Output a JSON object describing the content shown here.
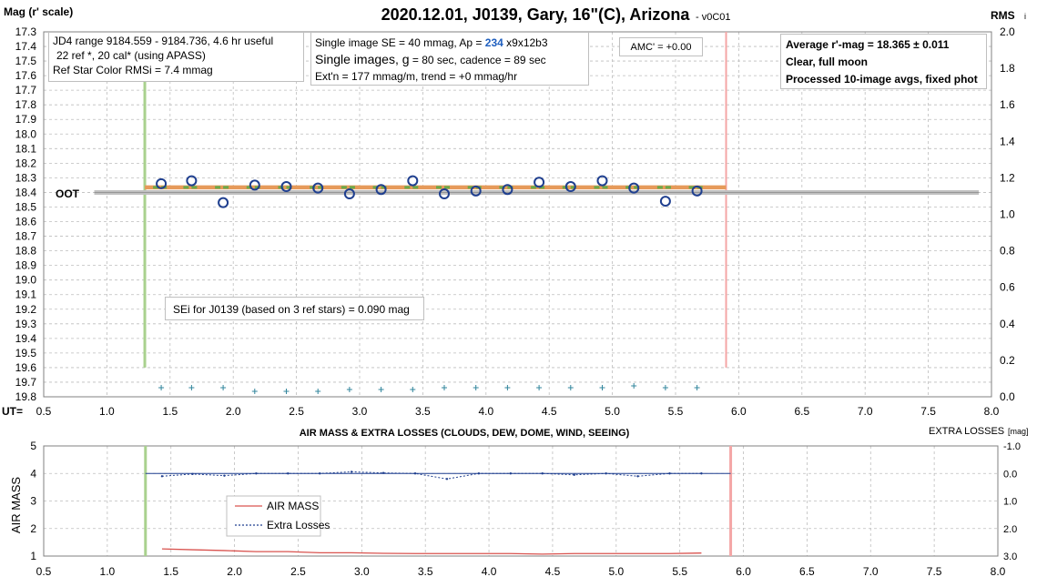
{
  "top_chart": {
    "title": "2020.12.01, J0139, Gary, 16\"(C), Arizona",
    "version": "- v0C01",
    "y_left_label": "Mag (r' scale)",
    "y_right_label": "RMS",
    "y_right_label_sub": "i",
    "x_prefix": "UT=",
    "oot_label": "OOT",
    "info_box_1": {
      "line1": "JD4 range 9184.559 - 9184.736, 4.6 hr useful",
      "line2": "22 ref *, 20 cal* (using APASS)",
      "line3": "Ref Star Color RMSi = 7.4 mmag"
    },
    "info_box_2": {
      "line1_pre": "Single image SE = 40 mmag, Ap = ",
      "line1_ap": "234",
      "line1_post": " x9x12b3",
      "line2_pre": "Single images, ",
      "line2_g": "g",
      "line2_post": " = 80 sec, cadence = 89 sec",
      "line3": "Ext'n = 177 mmag/m, trend = +0 mmag/hr"
    },
    "amc_box": "AMC' = +0.00",
    "summary_box": {
      "line1_pre": "Average r'-mag =  18.365 ",
      "line1_post": "± 0.011",
      "line2": "Clear, full moon",
      "line3": "Processed 10-image avgs, fixed phot"
    },
    "sei_box": "SEi for J0139 (based on 3 ref stars) = 0.090 mag",
    "colors": {
      "points": "#1f3f8f",
      "fit": "#e69a5a",
      "oot": "#c0c0c0",
      "ingress": "#a9d18e",
      "egress": "#f4a6a6",
      "rms": "#31859c"
    }
  },
  "bottom_chart": {
    "title": "AIR MASS & EXTRA LOSSES (CLOUDS, DEW, DOME, WIND, SEEING)",
    "y_left_label": "AIR MASS",
    "y_right_label": "EXTRA LOSSES",
    "y_right_unit": "[mag]",
    "legend": [
      "AIR MASS",
      "Extra Losses"
    ],
    "colors": {
      "airmass": "#d9534f",
      "losses": "#1f3f8f"
    }
  },
  "chart_data": [
    {
      "type": "scatter",
      "title": "2020.12.01, J0139, Gary, 16\"(C), Arizona",
      "xlabel": "UT",
      "ylabel": "Mag (r' scale)",
      "xlim": [
        0.5,
        8.0
      ],
      "ylim": [
        17.3,
        19.8
      ],
      "y_inverted": true,
      "y2label": "RMS i",
      "y2lim": [
        0.0,
        2.0
      ],
      "grid": true,
      "x_ticks": [
        "0.5",
        "1.0",
        "1.5",
        "2.0",
        "2.5",
        "3.0",
        "3.5",
        "4.0",
        "4.5",
        "5.0",
        "5.5",
        "6.0",
        "6.5",
        "7.0",
        "7.5",
        "8.0"
      ],
      "y_ticks": [
        "17.3",
        "17.4",
        "17.5",
        "17.6",
        "17.7",
        "17.8",
        "17.9",
        "18.0",
        "18.1",
        "18.2",
        "18.3",
        "18.4",
        "18.5",
        "18.6",
        "18.7",
        "18.8",
        "18.9",
        "19.0",
        "19.1",
        "19.2",
        "19.3",
        "19.4",
        "19.5",
        "19.6",
        "19.7",
        "19.8"
      ],
      "y2_ticks": [
        "0.0",
        "0.2",
        "0.4",
        "0.6",
        "0.8",
        "1.0",
        "1.2",
        "1.4",
        "1.6",
        "1.8",
        "2.0"
      ],
      "series": [
        {
          "name": "mag",
          "x": [
            1.43,
            1.67,
            1.92,
            2.17,
            2.42,
            2.67,
            2.92,
            3.17,
            3.42,
            3.67,
            3.92,
            4.17,
            4.42,
            4.67,
            4.92,
            5.17,
            5.42,
            5.67
          ],
          "y": [
            18.34,
            18.32,
            18.47,
            18.35,
            18.36,
            18.37,
            18.41,
            18.38,
            18.32,
            18.41,
            18.39,
            18.38,
            18.33,
            18.36,
            18.32,
            18.37,
            18.46,
            18.39
          ]
        },
        {
          "name": "model",
          "x": [
            1.3,
            5.9
          ],
          "y": [
            18.365,
            18.365
          ]
        },
        {
          "name": "OOT",
          "x": [
            0.9,
            7.9
          ],
          "y": [
            18.4,
            18.4
          ]
        },
        {
          "name": "rms",
          "x": [
            1.43,
            1.67,
            1.92,
            2.17,
            2.42,
            2.67,
            2.92,
            3.17,
            3.42,
            3.67,
            3.92,
            4.17,
            4.42,
            4.67,
            4.92,
            5.17,
            5.42,
            5.67
          ],
          "y2": [
            0.05,
            0.05,
            0.05,
            0.03,
            0.03,
            0.03,
            0.04,
            0.04,
            0.04,
            0.05,
            0.05,
            0.05,
            0.05,
            0.05,
            0.05,
            0.06,
            0.05,
            0.05
          ]
        }
      ],
      "vlines": [
        1.3,
        5.9
      ]
    },
    {
      "type": "line",
      "title": "AIR MASS & EXTRA LOSSES (CLOUDS, DEW, DOME, WIND, SEEING)",
      "xlabel": "",
      "ylabel": "AIR MASS",
      "xlim": [
        0.5,
        8.0
      ],
      "ylim": [
        1,
        5
      ],
      "y2label": "EXTRA LOSSES [mag]",
      "y2lim": [
        3.0,
        -1.0
      ],
      "grid": true,
      "x_ticks": [
        "0.5",
        "1.0",
        "1.5",
        "2.0",
        "2.5",
        "3.0",
        "3.5",
        "4.0",
        "4.5",
        "5.0",
        "5.5",
        "6.0",
        "6.5",
        "7.0",
        "7.5",
        "8.0"
      ],
      "y_ticks": [
        "1",
        "2",
        "3",
        "4",
        "5"
      ],
      "y2_ticks": [
        "-1.0",
        "0.0",
        "1.0",
        "2.0",
        "3.0"
      ],
      "legend": "center-left",
      "series": [
        {
          "name": "AIR MASS",
          "x": [
            1.43,
            1.67,
            1.92,
            2.17,
            2.42,
            2.67,
            2.92,
            3.17,
            3.42,
            3.67,
            3.92,
            4.17,
            4.42,
            4.67,
            4.92,
            5.17,
            5.42,
            5.67
          ],
          "y": [
            1.26,
            1.23,
            1.2,
            1.16,
            1.16,
            1.12,
            1.12,
            1.1,
            1.09,
            1.09,
            1.09,
            1.09,
            1.07,
            1.09,
            1.09,
            1.09,
            1.09,
            1.11
          ]
        },
        {
          "name": "Extra Losses",
          "x": [
            1.43,
            1.67,
            1.92,
            2.17,
            2.42,
            2.67,
            2.92,
            3.17,
            3.42,
            3.67,
            3.92,
            4.17,
            4.42,
            4.67,
            4.92,
            5.17,
            5.42,
            5.67
          ],
          "y2": [
            0.1,
            0.02,
            0.08,
            0.0,
            0.0,
            0.0,
            -0.06,
            -0.02,
            0.0,
            0.2,
            0.0,
            0.0,
            0.0,
            0.05,
            0.0,
            0.1,
            0.0,
            0.0
          ]
        },
        {
          "name": "baseline",
          "x": [
            1.3,
            5.9
          ],
          "y2": [
            0.0,
            0.0
          ]
        }
      ],
      "vlines": [
        1.3,
        5.9
      ]
    }
  ]
}
